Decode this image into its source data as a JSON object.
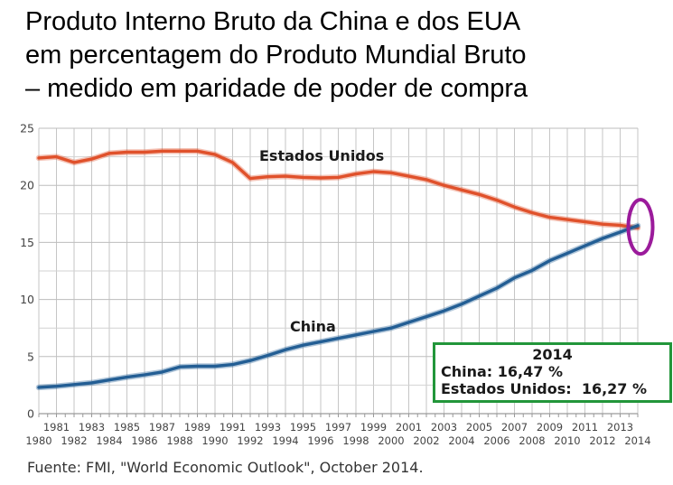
{
  "title": {
    "line1": "Produto Interno Bruto da China e dos EUA",
    "line2": "em percentagem do Produto Mundial Bruto",
    "line3": "– medido em paridade de poder de compra"
  },
  "footer": {
    "source": "Fuente: FMI, \"World Economic Outlook\", October 2014."
  },
  "chart_data": {
    "type": "line",
    "title": "Produto Interno Bruto da China e dos EUA em percentagem do Produto Mundial Bruto – medido em paridade de poder de compra",
    "xlabel": "",
    "ylabel": "",
    "ylim": [
      0,
      25
    ],
    "yticks": [
      0,
      5,
      10,
      15,
      20,
      25
    ],
    "yticks_minor": [
      2.5,
      7.5,
      12.5,
      17.5,
      22.5
    ],
    "grid": true,
    "legend_position": "inline-labels",
    "x": [
      1980,
      1981,
      1982,
      1983,
      1984,
      1985,
      1986,
      1987,
      1988,
      1989,
      1990,
      1991,
      1992,
      1993,
      1994,
      1995,
      1996,
      1997,
      1998,
      1999,
      2000,
      2001,
      2002,
      2003,
      2004,
      2005,
      2006,
      2007,
      2008,
      2009,
      2010,
      2011,
      2012,
      2013,
      2014
    ],
    "series": [
      {
        "name": "Estados Unidos",
        "color": "#e0512b",
        "values": [
          22.4,
          22.5,
          22.0,
          22.3,
          22.8,
          22.9,
          22.9,
          23.0,
          23.0,
          23.0,
          22.7,
          22.0,
          20.6,
          20.75,
          20.8,
          20.7,
          20.65,
          20.7,
          21.0,
          21.2,
          21.1,
          20.8,
          20.5,
          20.0,
          19.6,
          19.2,
          18.7,
          18.1,
          17.6,
          17.2,
          17.0,
          16.8,
          16.6,
          16.5,
          16.27
        ]
      },
      {
        "name": "China",
        "color": "#235e94",
        "values": [
          2.3,
          2.4,
          2.55,
          2.7,
          2.95,
          3.2,
          3.4,
          3.65,
          4.1,
          4.15,
          4.15,
          4.3,
          4.65,
          5.1,
          5.6,
          6.0,
          6.3,
          6.6,
          6.9,
          7.2,
          7.5,
          8.0,
          8.5,
          9.0,
          9.6,
          10.3,
          11.0,
          11.9,
          12.55,
          13.4,
          14.05,
          14.7,
          15.35,
          15.9,
          16.47
        ]
      }
    ],
    "annotation_box": {
      "title": "2014",
      "china_line": "China: 16,47 %",
      "us_line": "Estados Unidos:  16,27 %",
      "border_color": "#22963a"
    },
    "highlight_ellipse": {
      "color": "#9b1b9b",
      "x_year": 2014,
      "y_value": 16.37
    },
    "grid_color_major": "#bdbdbd",
    "grid_color_minor": "#d2d2d2",
    "grid_color_vertical": "#c6c6c6",
    "axis_color": "#9a9a9a",
    "tick_label_color": "#444444"
  }
}
